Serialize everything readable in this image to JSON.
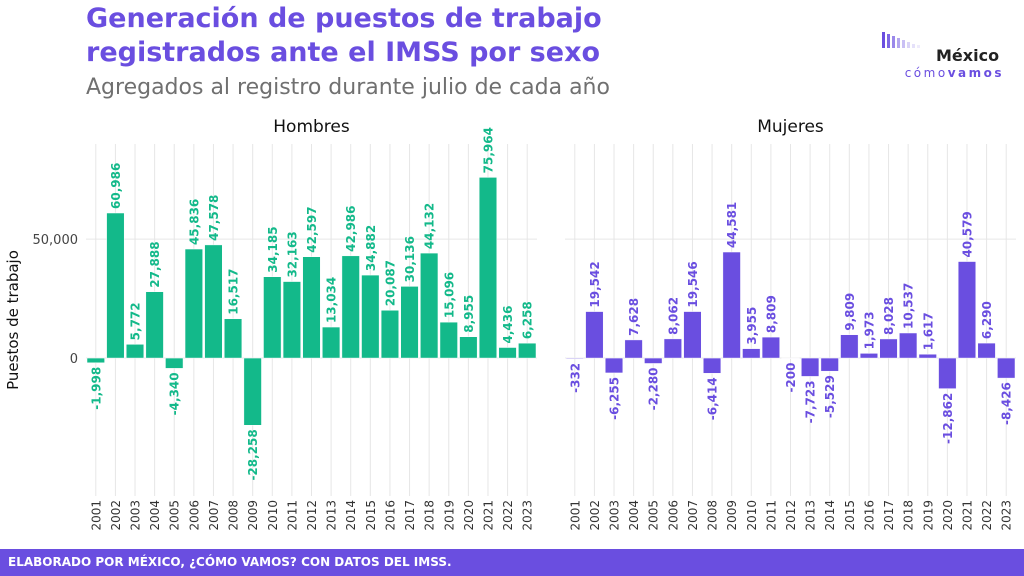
{
  "page": {
    "title_line1": "Generación de puestos de trabajo",
    "title_line2": "registrados ante el IMSS por sexo",
    "subtitle": "Agregados al registro durante julio de cada año",
    "footer": "ELABORADO POR MÉXICO, ¿CÓMO VAMOS? CON DATOS DEL IMSS."
  },
  "logo": {
    "name": "México",
    "tag_plain": "cómo",
    "tag_bold": "vamos"
  },
  "colors": {
    "Hombres": "#13b98a",
    "Mujeres": "#6a4ee0",
    "grid": "#e6e6e6"
  },
  "chart_data": {
    "type": "bar",
    "ylabel": "Puestos de trabajo",
    "ylim": [
      -58000,
      90000
    ],
    "yticks": [
      {
        "value": 0,
        "label": "0"
      },
      {
        "value": 50000,
        "label": "50,000"
      }
    ],
    "categories": [
      "2001",
      "2002",
      "2003",
      "2004",
      "2005",
      "2006",
      "2007",
      "2008",
      "2009",
      "2010",
      "2011",
      "2012",
      "2013",
      "2014",
      "2015",
      "2016",
      "2017",
      "2018",
      "2019",
      "2020",
      "2021",
      "2022",
      "2023"
    ],
    "grid": true,
    "panels": [
      {
        "name": "Hombres",
        "values": [
          -1998,
          60986,
          5772,
          27888,
          -4340,
          45836,
          47578,
          16517,
          -28258,
          34185,
          32163,
          42597,
          13034,
          42986,
          34882,
          20087,
          30136,
          44132,
          15096,
          8955,
          75964,
          4436,
          6258
        ],
        "labels": [
          "-1,998",
          "60,986",
          "5,772",
          "27,888",
          "-4,340",
          "45,836",
          "47,578",
          "16,517",
          "-28,258",
          "34,185",
          "32,163",
          "42,597",
          "13,034",
          "42,986",
          "34,882",
          "20,087",
          "30,136",
          "44,132",
          "15,096",
          "8,955",
          "75,964",
          "4,436",
          "6,258"
        ]
      },
      {
        "name": "Mujeres",
        "values": [
          -332,
          19542,
          -6255,
          7628,
          -2280,
          8062,
          19546,
          -6414,
          44581,
          3955,
          8809,
          -200,
          -7723,
          -5529,
          9809,
          1973,
          8028,
          10537,
          1617,
          -12862,
          40579,
          6290,
          -8426
        ],
        "labels": [
          "-332",
          "19,542",
          "-6,255",
          "7,628",
          "-2,280",
          "8,062",
          "19,546",
          "-6,414",
          "44,581",
          "3,955",
          "8,809",
          "-200",
          "-7,723",
          "-5,529",
          "9,809",
          "1,973",
          "8,028",
          "10,537",
          "1,617",
          "-12,862",
          "40,579",
          "6,290",
          "-8,426"
        ]
      }
    ]
  }
}
